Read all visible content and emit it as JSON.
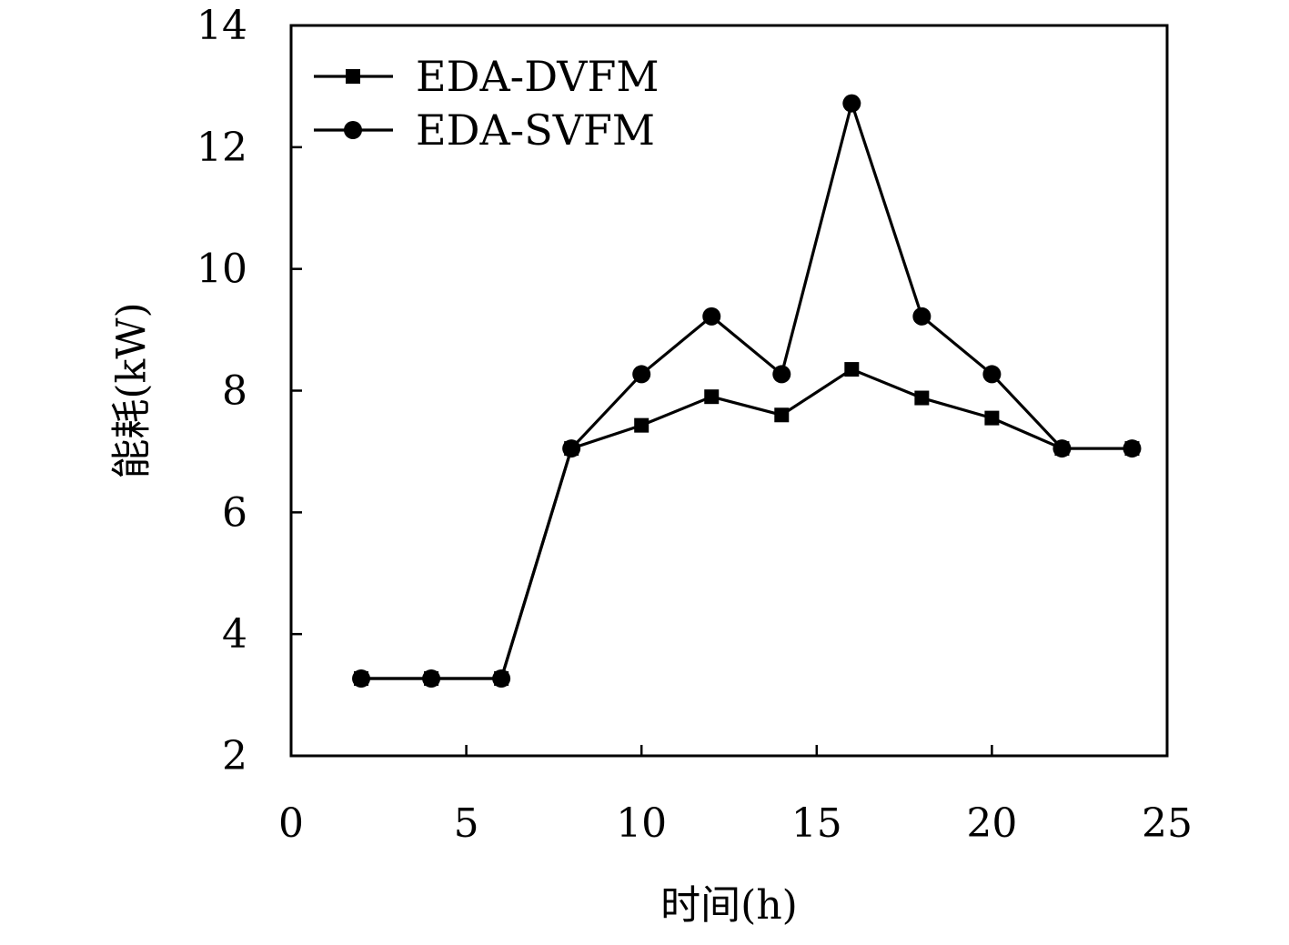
{
  "chart_data": {
    "type": "line",
    "title": "",
    "xlabel": "时间(h)",
    "ylabel": "能耗(kW)",
    "xlim": [
      0,
      25
    ],
    "ylim": [
      2,
      14
    ],
    "xticks": [
      0,
      5,
      10,
      15,
      20,
      25
    ],
    "yticks": [
      2,
      4,
      6,
      8,
      10,
      12,
      14
    ],
    "grid": false,
    "legend_position": "top-left",
    "x": [
      2,
      4,
      6,
      8,
      10,
      12,
      14,
      16,
      18,
      20,
      22,
      24
    ],
    "series": [
      {
        "name": "EDA-DVFM",
        "marker": "square",
        "color": "#000000",
        "values": [
          3.27,
          3.27,
          3.27,
          7.05,
          7.43,
          7.9,
          7.6,
          8.35,
          7.88,
          7.55,
          7.05,
          7.05
        ]
      },
      {
        "name": "EDA-SVFM",
        "marker": "circle",
        "color": "#000000",
        "values": [
          3.27,
          3.27,
          3.27,
          7.05,
          8.27,
          9.22,
          8.27,
          12.72,
          9.22,
          8.27,
          7.05,
          7.05
        ]
      }
    ]
  }
}
